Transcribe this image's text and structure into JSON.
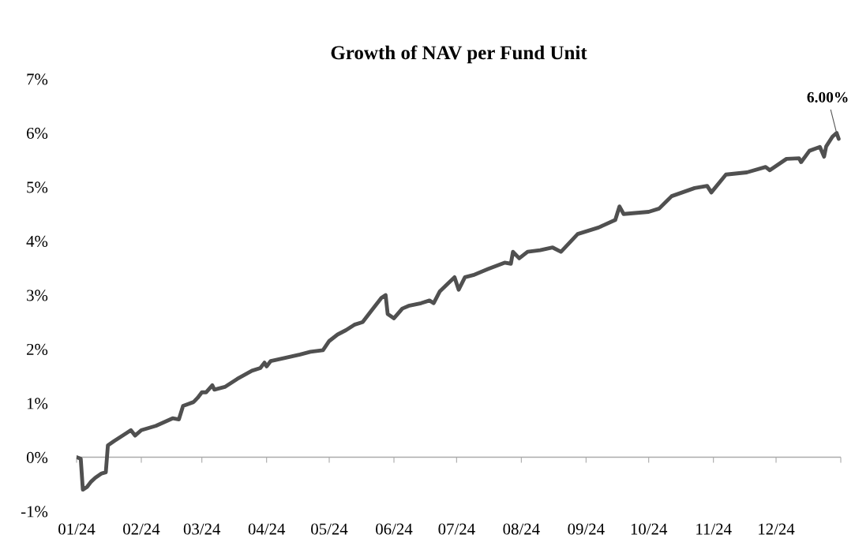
{
  "chart_data": {
    "type": "line",
    "title": "Growth of NAV per Fund Unit",
    "x": [
      "2024-01-01",
      "2024-01-03",
      "2024-01-04",
      "2024-01-06",
      "2024-01-08",
      "2024-01-10",
      "2024-01-13",
      "2024-01-15",
      "2024-01-16",
      "2024-01-19",
      "2024-01-25",
      "2024-01-27",
      "2024-01-29",
      "2024-02-01",
      "2024-02-08",
      "2024-02-16",
      "2024-02-19",
      "2024-02-21",
      "2024-02-26",
      "2024-02-28",
      "2024-03-01",
      "2024-03-03",
      "2024-03-06",
      "2024-03-07",
      "2024-03-12",
      "2024-03-18",
      "2024-03-25",
      "2024-03-29",
      "2024-03-31",
      "2024-04-01",
      "2024-04-03",
      "2024-04-09",
      "2024-04-17",
      "2024-04-22",
      "2024-04-28",
      "2024-05-01",
      "2024-05-05",
      "2024-05-09",
      "2024-05-13",
      "2024-05-17",
      "2024-05-21",
      "2024-05-26",
      "2024-05-28",
      "2024-05-29",
      "2024-06-01",
      "2024-06-05",
      "2024-06-08",
      "2024-06-14",
      "2024-06-18",
      "2024-06-20",
      "2024-06-23",
      "2024-06-27",
      "2024-06-30",
      "2024-07-02",
      "2024-07-05",
      "2024-07-09",
      "2024-07-16",
      "2024-07-24",
      "2024-07-27",
      "2024-07-28",
      "2024-07-31",
      "2024-08-04",
      "2024-08-10",
      "2024-08-16",
      "2024-08-20",
      "2024-08-28",
      "2024-09-07",
      "2024-09-15",
      "2024-09-17",
      "2024-09-19",
      "2024-10-01",
      "2024-10-06",
      "2024-10-12",
      "2024-10-23",
      "2024-10-29",
      "2024-10-31",
      "2024-11-07",
      "2024-11-17",
      "2024-11-26",
      "2024-11-28",
      "2024-12-06",
      "2024-12-12",
      "2024-12-13",
      "2024-12-17",
      "2024-12-22",
      "2024-12-24",
      "2024-12-25",
      "2024-12-28",
      "2024-12-30",
      "2024-12-31"
    ],
    "series": [
      {
        "color": "#505050",
        "values": [
          0.0,
          -0.03,
          -0.6,
          -0.55,
          -0.45,
          -0.38,
          -0.3,
          -0.28,
          0.22,
          0.3,
          0.45,
          0.5,
          0.4,
          0.5,
          0.58,
          0.72,
          0.7,
          0.95,
          1.02,
          1.1,
          1.2,
          1.2,
          1.33,
          1.25,
          1.3,
          1.45,
          1.6,
          1.65,
          1.75,
          1.68,
          1.78,
          1.83,
          1.9,
          1.95,
          1.98,
          2.15,
          2.27,
          2.35,
          2.45,
          2.5,
          2.7,
          2.95,
          3.0,
          2.65,
          2.57,
          2.75,
          2.8,
          2.85,
          2.9,
          2.85,
          3.07,
          3.22,
          3.33,
          3.1,
          3.33,
          3.37,
          3.48,
          3.6,
          3.58,
          3.8,
          3.68,
          3.8,
          3.83,
          3.88,
          3.8,
          4.13,
          4.25,
          4.39,
          4.64,
          4.5,
          4.54,
          4.6,
          4.83,
          4.98,
          5.02,
          4.9,
          5.23,
          5.27,
          5.37,
          5.31,
          5.52,
          5.53,
          5.46,
          5.67,
          5.74,
          5.56,
          5.75,
          5.93,
          6.0,
          5.89
        ]
      }
    ],
    "xlim": [
      "2024-01-01",
      "2025-01-01"
    ],
    "xticks": [
      {
        "value": "2024-01-01",
        "label": "01/24"
      },
      {
        "value": "2024-02-01",
        "label": "02/24"
      },
      {
        "value": "2024-03-01",
        "label": "03/24"
      },
      {
        "value": "2024-04-01",
        "label": "04/24"
      },
      {
        "value": "2024-05-01",
        "label": "05/24"
      },
      {
        "value": "2024-06-01",
        "label": "06/24"
      },
      {
        "value": "2024-07-01",
        "label": "07/24"
      },
      {
        "value": "2024-08-01",
        "label": "08/24"
      },
      {
        "value": "2024-09-01",
        "label": "09/24"
      },
      {
        "value": "2024-10-01",
        "label": "10/24"
      },
      {
        "value": "2024-11-01",
        "label": "11/24"
      },
      {
        "value": "2024-12-01",
        "label": "12/24"
      },
      {
        "value": "2025-01-01",
        "label": null
      }
    ],
    "ylim": [
      -1,
      7
    ],
    "yticks": [
      {
        "value": -1,
        "label": "-1%"
      },
      {
        "value": 0,
        "label": "0%"
      },
      {
        "value": 1,
        "label": "1%"
      },
      {
        "value": 2,
        "label": "2%"
      },
      {
        "value": 3,
        "label": "3%"
      },
      {
        "value": 4,
        "label": "4%"
      },
      {
        "value": 5,
        "label": "5%"
      },
      {
        "value": 6,
        "label": "6%"
      },
      {
        "value": 7,
        "label": "7%"
      }
    ],
    "annotations": [
      {
        "text": "6.00%",
        "x": "2024-12-30",
        "y": 6.0
      }
    ],
    "ref_lines": [
      {
        "axis": "y",
        "value": 0,
        "color": "#aaaaaa"
      }
    ],
    "grid": false,
    "legend": false
  }
}
